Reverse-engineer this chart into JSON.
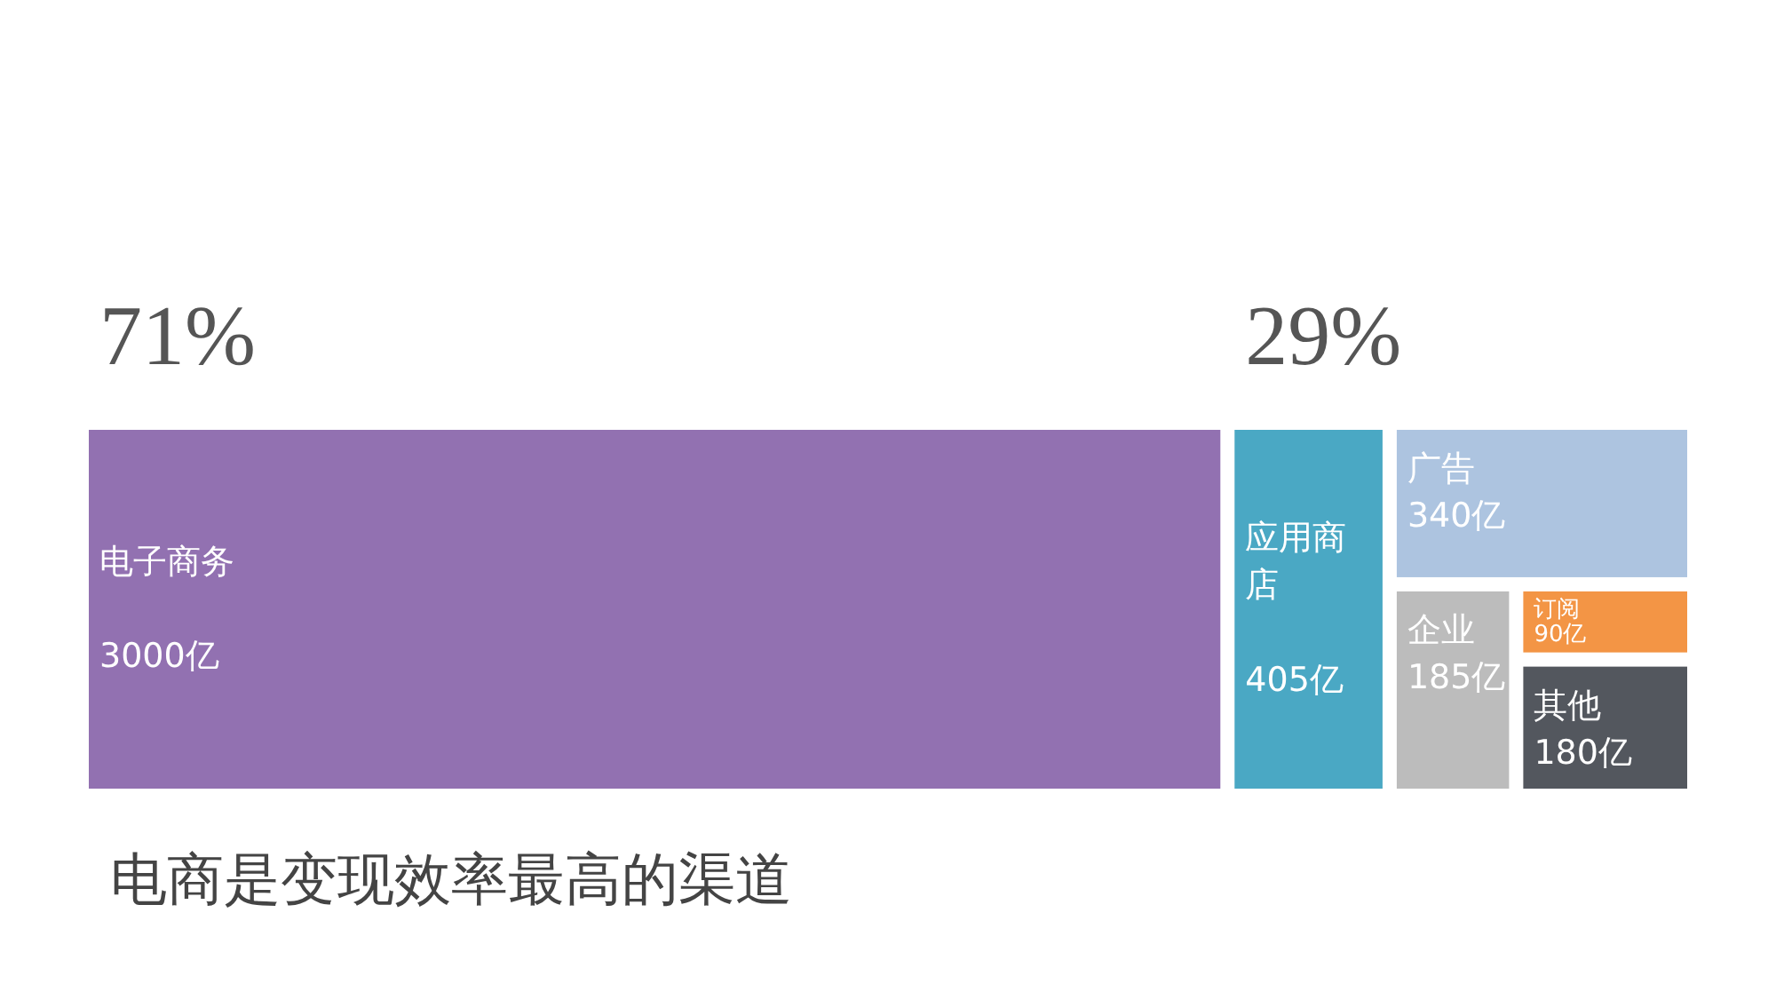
{
  "chart_data": {
    "type": "other",
    "title": "电商是变现效率最高的渠道",
    "categories": [
      "电子商务",
      "应用商店",
      "广告",
      "企业",
      "订阅",
      "其他"
    ],
    "values": [
      3000,
      405,
      340,
      185,
      90,
      180
    ],
    "value_labels": [
      "3000亿",
      "405亿",
      "340亿",
      "185亿",
      "90亿",
      "180亿"
    ],
    "colors": [
      "#9271b1",
      "#4aa8c4",
      "#adc4e0",
      "#bcbcbc",
      "#f39545",
      "#53575e"
    ],
    "annotations": [
      "71%",
      "29%"
    ]
  }
}
